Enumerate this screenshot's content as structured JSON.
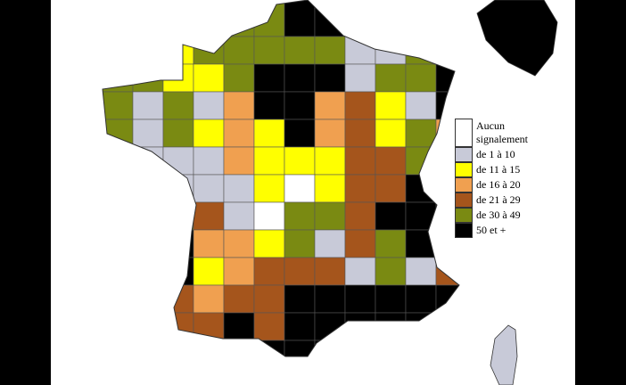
{
  "legend": {
    "items": [
      {
        "label": "Aucun signalement",
        "color": "#ffffff"
      },
      {
        "label": "de 1 à 10",
        "color": "#c8cad8"
      },
      {
        "label": "de 11 à 15",
        "color": "#ffff00"
      },
      {
        "label": "de 16 à 20",
        "color": "#f0a050"
      },
      {
        "label": "de 21 à 29",
        "color": "#a5551c"
      },
      {
        "label": "de 30 à 49",
        "color": "#7a8a12"
      },
      {
        "label": "50 et +",
        "color": "#000000"
      }
    ]
  }
}
